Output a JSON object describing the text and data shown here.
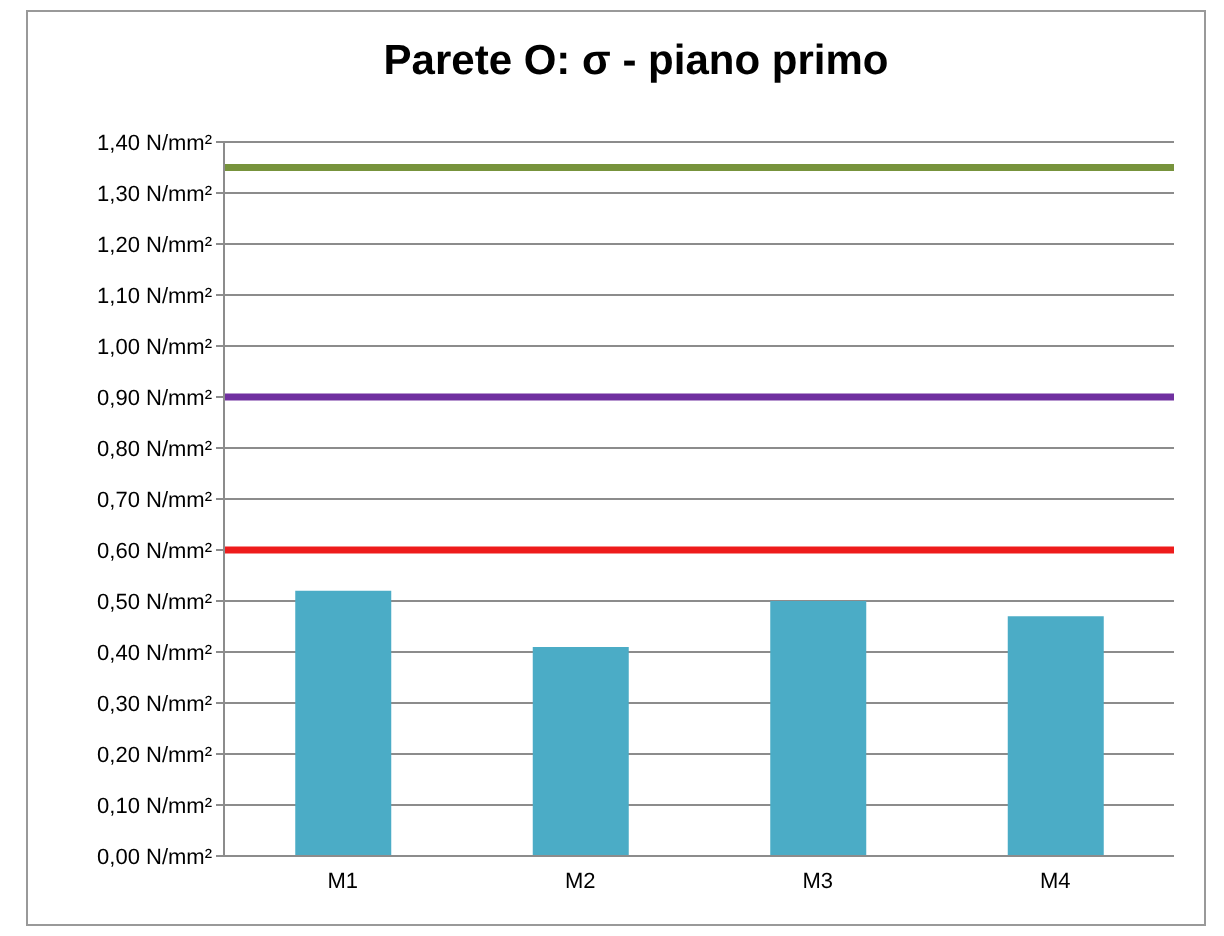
{
  "chart_data": {
    "type": "bar",
    "title": "Parete O: σ - piano primo",
    "categories": [
      "M1",
      "M2",
      "M3",
      "M4"
    ],
    "values": [
      0.52,
      0.41,
      0.5,
      0.47
    ],
    "color": "#4bacc6",
    "ylim": [
      0,
      1.4
    ],
    "yticks": [
      {
        "value": 0,
        "label": "0,00 N/mm²"
      },
      {
        "value": 0.1,
        "label": "0,10 N/mm²"
      },
      {
        "value": 0.2,
        "label": "0,20 N/mm²"
      },
      {
        "value": 0.3,
        "label": "0,30 N/mm²"
      },
      {
        "value": 0.4,
        "label": "0,40 N/mm²"
      },
      {
        "value": 0.5,
        "label": "0,50 N/mm²"
      },
      {
        "value": 0.6,
        "label": "0,60 N/mm²"
      },
      {
        "value": 0.7,
        "label": "0,70 N/mm²"
      },
      {
        "value": 0.8,
        "label": "0,80 N/mm²"
      },
      {
        "value": 0.9,
        "label": "0,90 N/mm²"
      },
      {
        "value": 1.0,
        "label": "1,00 N/mm²"
      },
      {
        "value": 1.1,
        "label": "1,10 N/mm²"
      },
      {
        "value": 1.2,
        "label": "1,20 N/mm²"
      },
      {
        "value": 1.3,
        "label": "1,30 N/mm²"
      },
      {
        "value": 1.4,
        "label": "1,40 N/mm²"
      }
    ],
    "ref_lines": [
      {
        "axis": "y",
        "value": 1.35,
        "color": "#77933c"
      },
      {
        "axis": "y",
        "value": 0.9,
        "color": "#7030a0"
      },
      {
        "axis": "y",
        "value": 0.6,
        "color": "#ee1c1c"
      }
    ],
    "grid": "y"
  }
}
